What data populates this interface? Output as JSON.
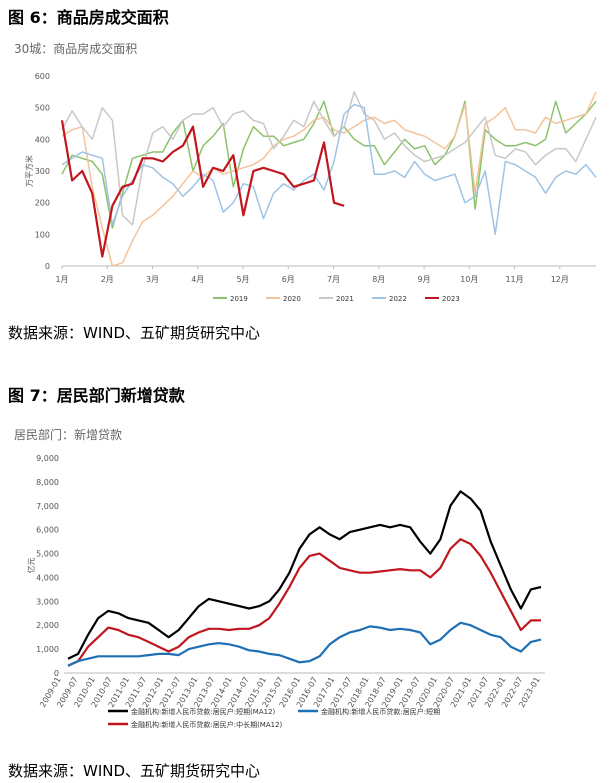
{
  "figure6": {
    "title": "图 6：商品房成交面积",
    "subtitle": "30城：商品房成交面积",
    "source": "数据来源：WIND、五矿期货研究中心"
  },
  "figure7": {
    "title": "图 7：居民部门新增贷款",
    "subtitle": "居民部门：新增贷款",
    "source": "数据来源：WIND、五矿期货研究中心"
  },
  "chart_data": [
    {
      "type": "line",
      "ylabel": "万平方米",
      "ylim": [
        0,
        600
      ],
      "yticks": [
        0,
        100,
        200,
        300,
        400,
        500,
        600
      ],
      "xticks": [
        "1月",
        "2月",
        "3月",
        "4月",
        "5月",
        "6月",
        "7月",
        "8月",
        "9月",
        "10月",
        "11月",
        "12月"
      ],
      "grid": false,
      "legend": "bottom",
      "series": [
        {
          "name": "2019",
          "color": "#8cc26b",
          "values": [
            290,
            350,
            340,
            330,
            290,
            120,
            230,
            340,
            350,
            360,
            360,
            420,
            460,
            300,
            380,
            410,
            450,
            250,
            370,
            440,
            410,
            410,
            380,
            390,
            400,
            450,
            520,
            410,
            440,
            400,
            380,
            380,
            320,
            360,
            400,
            370,
            380,
            320,
            350,
            410,
            520,
            180,
            430,
            400,
            380,
            380,
            390,
            380,
            400,
            520,
            420,
            450,
            480,
            520
          ]
        },
        {
          "name": "2020",
          "color": "#f4c39a",
          "values": [
            410,
            430,
            440,
            250,
            120,
            0,
            10,
            80,
            140,
            160,
            190,
            220,
            260,
            300,
            280,
            310,
            290,
            300,
            310,
            320,
            340,
            380,
            400,
            410,
            430,
            460,
            470,
            430,
            420,
            440,
            460,
            470,
            450,
            460,
            430,
            420,
            410,
            390,
            370,
            410,
            510,
            230,
            450,
            470,
            500,
            430,
            430,
            420,
            470,
            450,
            460,
            470,
            480,
            550
          ]
        },
        {
          "name": "2021",
          "color": "#c8c8c8",
          "values": [
            430,
            490,
            440,
            400,
            500,
            460,
            160,
            130,
            310,
            420,
            440,
            400,
            460,
            480,
            480,
            500,
            440,
            480,
            490,
            460,
            450,
            370,
            410,
            460,
            440,
            520,
            460,
            410,
            440,
            550,
            480,
            460,
            400,
            420,
            380,
            350,
            330,
            340,
            350,
            370,
            390,
            430,
            470,
            350,
            340,
            370,
            360,
            320,
            350,
            370,
            370,
            330,
            400,
            470
          ]
        },
        {
          "name": "2022",
          "color": "#9dc3e6",
          "values": [
            320,
            340,
            360,
            350,
            340,
            130,
            220,
            270,
            320,
            310,
            280,
            260,
            220,
            250,
            290,
            270,
            170,
            200,
            260,
            250,
            150,
            230,
            260,
            240,
            270,
            290,
            240,
            330,
            480,
            510,
            500,
            290,
            290,
            300,
            280,
            330,
            290,
            270,
            280,
            290,
            200,
            220,
            300,
            100,
            330,
            320,
            300,
            280,
            230,
            280,
            300,
            290,
            320,
            280
          ]
        },
        {
          "name": "2023",
          "color": "#c0171e",
          "values": [
            460,
            270,
            300,
            230,
            30,
            190,
            250,
            260,
            340,
            340,
            330,
            360,
            380,
            440,
            250,
            310,
            300,
            350,
            160,
            300,
            310,
            300,
            290,
            250,
            260,
            270,
            390,
            200,
            190
          ]
        }
      ]
    },
    {
      "type": "line",
      "ylabel": "亿元",
      "ylim": [
        0,
        9000
      ],
      "yticks": [
        0,
        1000,
        2000,
        3000,
        4000,
        5000,
        6000,
        7000,
        8000,
        9000
      ],
      "xticks": [
        "2009-01",
        "2009-07",
        "2010-01",
        "2010-07",
        "2011-01",
        "2011-07",
        "2012-01",
        "2012-07",
        "2013-01",
        "2013-07",
        "2014-01",
        "2014-07",
        "2015-01",
        "2015-07",
        "2016-01",
        "2016-07",
        "2017-01",
        "2017-07",
        "2018-01",
        "2018-07",
        "2019-01",
        "2019-07",
        "2020-01",
        "2020-07",
        "2021-01",
        "2021-07",
        "2022-01",
        "2022-07",
        "2023-01"
      ],
      "grid": false,
      "legend": "bottom",
      "series": [
        {
          "name": "金融机构:新增人民币贷款:居民户:短期(MA12)",
          "color": "#000000",
          "values": [
            600,
            800,
            1600,
            2300,
            2600,
            2500,
            2300,
            2200,
            2100,
            1800,
            1500,
            1800,
            2300,
            2800,
            3100,
            3000,
            2900,
            2800,
            2700,
            2800,
            3000,
            3500,
            4200,
            5200,
            5800,
            6100,
            5800,
            5600,
            5900,
            6000,
            6100,
            6200,
            6100,
            6200,
            6100,
            5500,
            5000,
            5600,
            7000,
            7600,
            7300,
            6800,
            5500,
            4500,
            3500,
            2700,
            3500,
            3600
          ]
        },
        {
          "name": "金融机构:新增人民币贷款:居民户:中长期(MA12)",
          "color": "#c0171e",
          "values": [
            300,
            500,
            1100,
            1500,
            1900,
            1800,
            1600,
            1500,
            1300,
            1100,
            900,
            1100,
            1500,
            1700,
            1850,
            1850,
            1800,
            1850,
            1850,
            2000,
            2300,
            2900,
            3600,
            4400,
            4900,
            5000,
            4700,
            4400,
            4300,
            4200,
            4200,
            4250,
            4300,
            4350,
            4300,
            4300,
            4000,
            4400,
            5200,
            5600,
            5400,
            4900,
            4200,
            3400,
            2600,
            1800,
            2200,
            2200
          ]
        },
        {
          "name": "金融机构:新增人民币贷款:居民户:短期",
          "color": "#1f6fb5",
          "values": [
            300,
            500,
            600,
            700,
            700,
            700,
            700,
            700,
            750,
            800,
            800,
            750,
            1000,
            1100,
            1200,
            1250,
            1200,
            1100,
            950,
            900,
            800,
            750,
            600,
            450,
            500,
            700,
            1200,
            1500,
            1700,
            1800,
            1950,
            1900,
            1800,
            1850,
            1800,
            1700,
            1200,
            1400,
            1800,
            2100,
            2000,
            1800,
            1600,
            1500,
            1100,
            900,
            1300,
            1400
          ]
        }
      ]
    }
  ]
}
